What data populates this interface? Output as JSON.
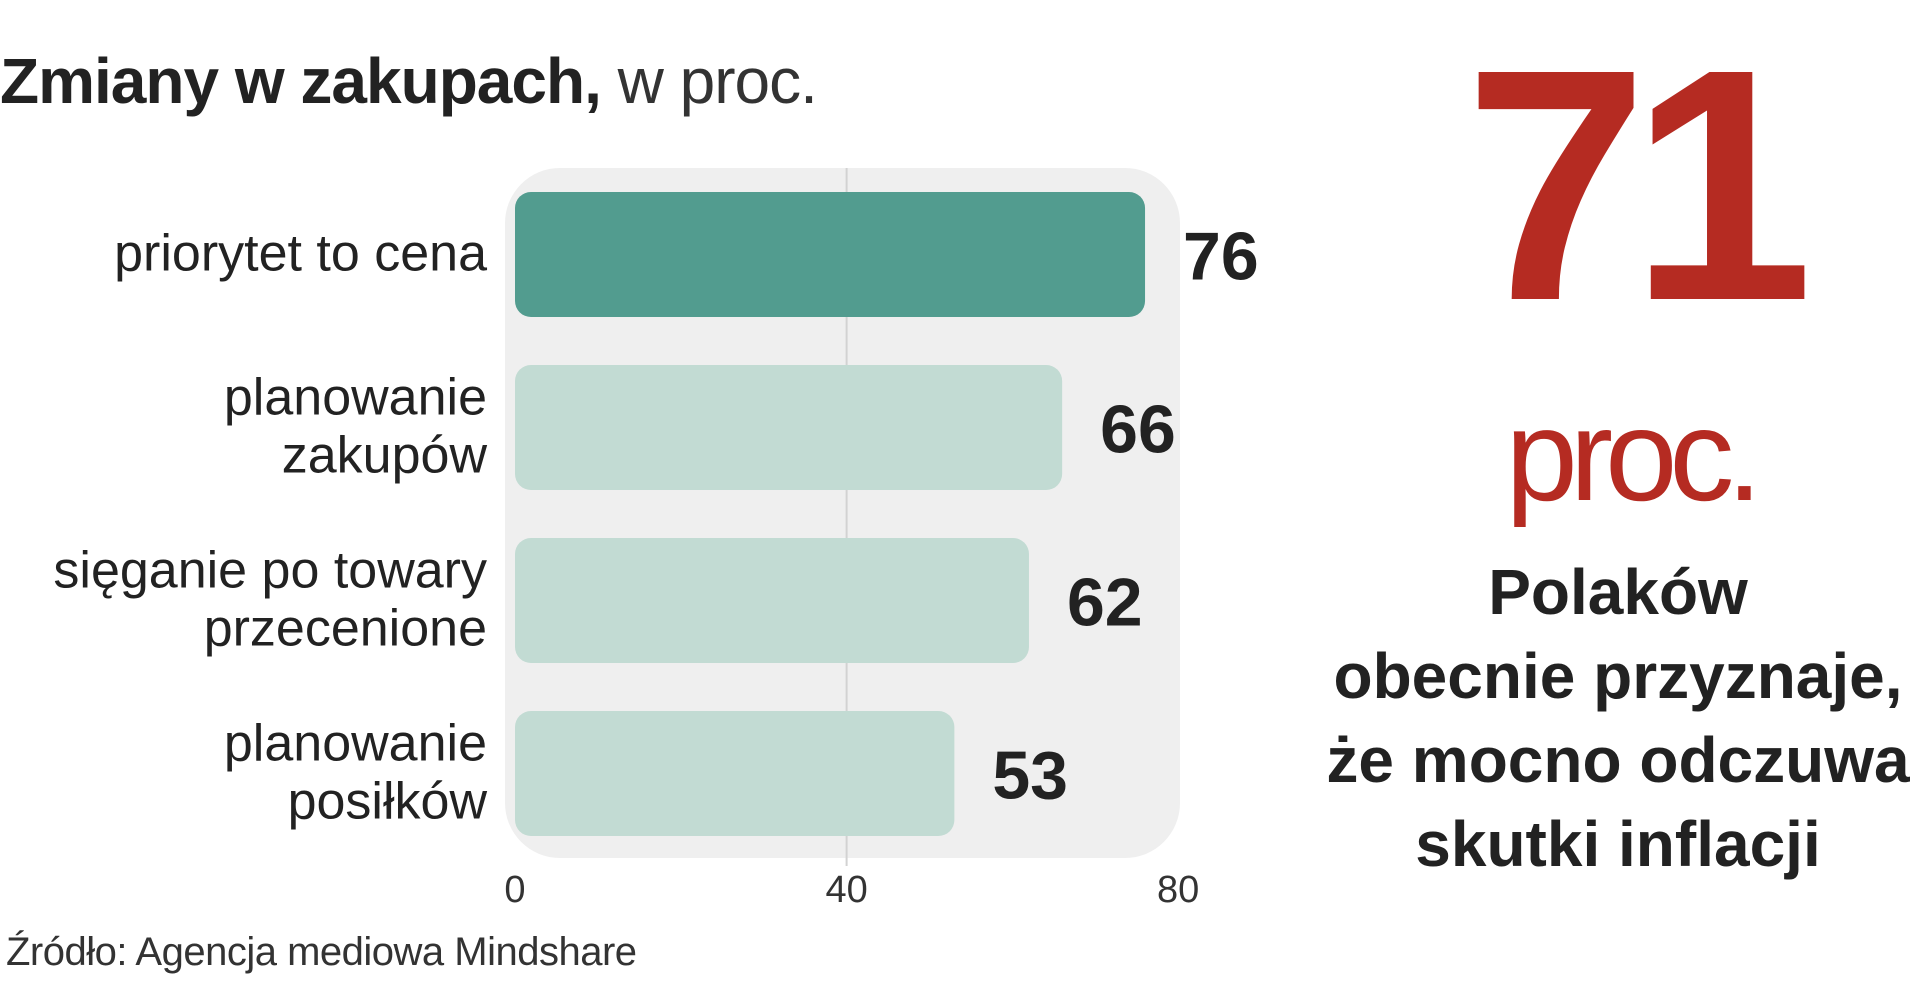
{
  "title": {
    "bold": "Zmiany w zakupach,",
    "light": " w proc."
  },
  "source": "Źródło: Agencja mediowa Mindshare",
  "highlight": {
    "number": "71",
    "unit": "proc.",
    "lines": [
      "Polaków",
      "obecnie przyznaje,",
      "że mocno odczuwa",
      "skutki inflacji"
    ]
  },
  "colors": {
    "primary_bar": "#529c8f",
    "secondary_bar": "#c2dbd3",
    "panel": "#efefef",
    "accent": "#b52b22"
  },
  "chart_data": {
    "type": "bar",
    "orientation": "horizontal",
    "categories": [
      [
        "priorytet to cena"
      ],
      [
        "planowanie",
        "zakupów"
      ],
      [
        "sięganie po towary",
        "przecenione"
      ],
      [
        "planowanie",
        "posiłków"
      ]
    ],
    "values": [
      76,
      66,
      62,
      53
    ],
    "value_labels": [
      "76",
      "66",
      "62",
      "53"
    ],
    "xlim": [
      0,
      80
    ],
    "xticks": [
      0,
      40,
      80
    ],
    "xtick_labels": [
      "0",
      "40",
      "80"
    ],
    "grid": true
  }
}
